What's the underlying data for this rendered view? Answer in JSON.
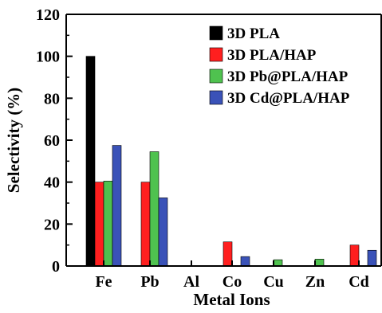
{
  "chart_data": {
    "type": "bar",
    "title": "",
    "xlabel": "Metal Ions",
    "ylabel": "Selectivity (%)",
    "ylim": [
      0,
      120
    ],
    "yticks": [
      0,
      20,
      40,
      60,
      80,
      100,
      120
    ],
    "categories": [
      "Fe",
      "Pb",
      "Al",
      "Co",
      "Cu",
      "Zn",
      "Cd"
    ],
    "series": [
      {
        "name": "3D PLA",
        "color": "#000000",
        "values": [
          100,
          0,
          0,
          0,
          0,
          0,
          0
        ]
      },
      {
        "name": "3D PLA/HAP",
        "color": "#ff1f1f",
        "values": [
          40,
          40,
          0,
          11.5,
          0,
          0,
          10
        ]
      },
      {
        "name": "3D Pb@PLA/HAP",
        "color": "#4fc24f",
        "values": [
          40.5,
          54.5,
          0,
          0,
          3,
          3.3,
          0
        ]
      },
      {
        "name": "3D Cd@PLA/HAP",
        "color": "#3a52b8",
        "values": [
          57.5,
          32.5,
          0,
          4.5,
          0,
          0,
          7.5
        ]
      }
    ],
    "legend_position": "top-right",
    "grid": false
  }
}
